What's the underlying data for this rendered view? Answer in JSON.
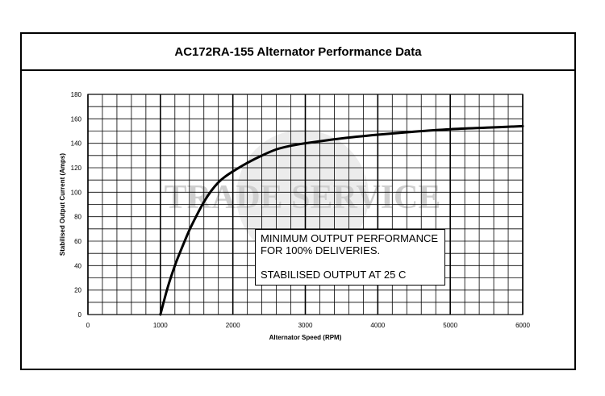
{
  "title": "AC172RA-155 Alternator Performance Data",
  "watermark": "TRADE SERVICE",
  "note": {
    "line1": "MINIMUM OUTPUT PERFORMANCE",
    "line2": "FOR 100% DELIVERIES.",
    "line3": "STABILISED OUTPUT AT 25 C"
  },
  "chart_data": {
    "type": "line",
    "title": "AC172RA-155 Alternator Performance Data",
    "xlabel": "Alternator Speed (RPM)",
    "ylabel": "Stabilised Output Current (Amps)",
    "xlim": [
      0,
      6000
    ],
    "ylim": [
      0,
      180
    ],
    "x_ticks": [
      0,
      1000,
      2000,
      3000,
      4000,
      5000,
      6000
    ],
    "y_ticks": [
      0,
      20,
      40,
      60,
      80,
      100,
      120,
      140,
      160,
      180
    ],
    "grid": true,
    "series": [
      {
        "x": [
          1000,
          1100,
          1200,
          1300,
          1400,
          1500,
          1600,
          1700,
          1800,
          1900,
          2000,
          2200,
          2400,
          2600,
          2800,
          3000,
          3500,
          4000,
          4500,
          5000,
          5500,
          6000
        ],
        "y": [
          0,
          22,
          40,
          55,
          69,
          81,
          92,
          101,
          108,
          113,
          117,
          124,
          130,
          135,
          138,
          140,
          144,
          147,
          149.5,
          151.5,
          152.8,
          154
        ],
        "color": "#000000"
      }
    ],
    "colors": {
      "line": "#000000",
      "grid": "#000000",
      "watermark": "#cfcfcf"
    }
  }
}
